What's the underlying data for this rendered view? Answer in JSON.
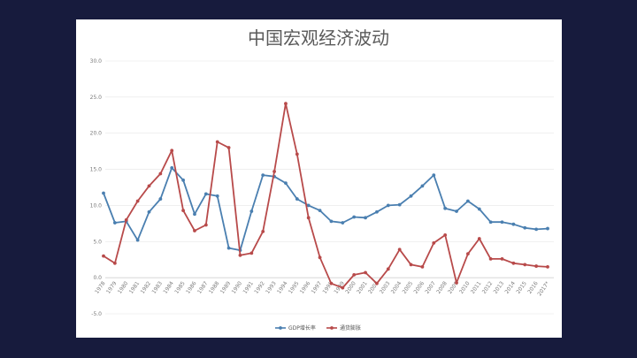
{
  "chart_data": {
    "type": "line",
    "title": "中国宏观经济波动",
    "xlabel": "",
    "ylabel": "",
    "ylim": [
      -5,
      30
    ],
    "yticks": [
      "-5.0",
      "0.0",
      "5.0",
      "10.0",
      "15.0",
      "20.0",
      "25.0",
      "30.0"
    ],
    "grid": true,
    "legend_position": "bottom",
    "x": [
      "1978",
      "1979",
      "1980",
      "1981",
      "1982",
      "1983",
      "1984",
      "1985",
      "1986",
      "1987",
      "1988",
      "1989",
      "1990",
      "1991",
      "1992",
      "1993",
      "1994",
      "1995",
      "1996",
      "1997",
      "1998",
      "1999",
      "2000",
      "2001",
      "2002",
      "2003",
      "2004",
      "2005",
      "2006",
      "2007",
      "2008",
      "2009",
      "2010",
      "2011",
      "2012",
      "2013",
      "2014",
      "2015",
      "2016",
      "2017*"
    ],
    "series": [
      {
        "name": "GDP增长率",
        "color": "#4a7fb0",
        "values": [
          11.7,
          7.6,
          7.8,
          5.2,
          9.1,
          10.9,
          15.2,
          13.5,
          8.8,
          11.6,
          11.3,
          4.1,
          3.8,
          9.2,
          14.2,
          14.0,
          13.1,
          10.9,
          10.0,
          9.3,
          7.8,
          7.6,
          8.4,
          8.3,
          9.1,
          10.0,
          10.1,
          11.3,
          12.7,
          14.2,
          9.6,
          9.2,
          10.6,
          9.5,
          7.7,
          7.7,
          7.4,
          6.9,
          6.7,
          6.8
        ]
      },
      {
        "name": "通货膨胀",
        "color": "#b84a4a",
        "values": [
          3.0,
          2.0,
          8.0,
          10.6,
          12.7,
          14.4,
          17.6,
          9.3,
          6.5,
          7.3,
          18.8,
          18.0,
          3.1,
          3.4,
          6.4,
          14.7,
          24.1,
          17.1,
          8.3,
          2.8,
          -0.8,
          -1.4,
          0.4,
          0.7,
          -0.8,
          1.2,
          3.9,
          1.8,
          1.5,
          4.8,
          5.9,
          -0.7,
          3.3,
          5.4,
          2.6,
          2.6,
          2.0,
          1.8,
          1.6,
          1.5
        ]
      }
    ]
  }
}
